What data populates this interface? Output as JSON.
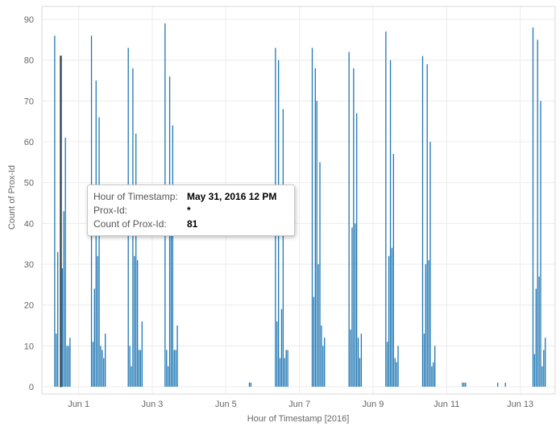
{
  "chart_data": {
    "type": "bar",
    "xlabel": "Hour of Timestamp [2016]",
    "ylabel": "Count of Prox-Id",
    "ylim": [
      0,
      95
    ],
    "x_range_days": [
      0,
      13.95
    ],
    "yticks": [
      0,
      10,
      20,
      30,
      40,
      50,
      60,
      70,
      80,
      90
    ],
    "xticks": [
      {
        "label": "Jun 1",
        "day": 1
      },
      {
        "label": "Jun 3",
        "day": 3
      },
      {
        "label": "Jun 5",
        "day": 5
      },
      {
        "label": "Jun 7",
        "day": 7
      },
      {
        "label": "Jun 9",
        "day": 9
      },
      {
        "label": "Jun 11",
        "day": 11
      },
      {
        "label": "Jun 13",
        "day": 13
      }
    ],
    "grid": true,
    "color": "#1f77b4",
    "series": [
      {
        "values": [
          {
            "t": "May 31, 2016 8 AM",
            "v": 86
          },
          {
            "t": "May 31, 2016 9 AM",
            "v": 13
          },
          {
            "t": "May 31, 2016 10 AM",
            "v": 33
          },
          {
            "t": "May 31, 2016 12 PM",
            "v": 81,
            "highlighted": true
          },
          {
            "t": "May 31, 2016 1 PM",
            "v": 29
          },
          {
            "t": "May 31, 2016 2 PM",
            "v": 43
          },
          {
            "t": "May 31, 2016 3 PM",
            "v": 61
          },
          {
            "t": "May 31, 2016 4 PM",
            "v": 10
          },
          {
            "t": "May 31, 2016 5 PM",
            "v": 10
          },
          {
            "t": "May 31, 2016 6 PM",
            "v": 12
          },
          {
            "t": "Jun 1, 2016 8 AM",
            "v": 86
          },
          {
            "t": "Jun 1, 2016 9 AM",
            "v": 11
          },
          {
            "t": "Jun 1, 2016 10 AM",
            "v": 24
          },
          {
            "t": "Jun 1, 2016 11 AM",
            "v": 75
          },
          {
            "t": "Jun 1, 2016 12 PM",
            "v": 32
          },
          {
            "t": "Jun 1, 2016 1 PM",
            "v": 66
          },
          {
            "t": "Jun 1, 2016 2 PM",
            "v": 10
          },
          {
            "t": "Jun 1, 2016 3 PM",
            "v": 9
          },
          {
            "t": "Jun 1, 2016 4 PM",
            "v": 7
          },
          {
            "t": "Jun 1, 2016 5 PM",
            "v": 13
          },
          {
            "t": "Jun 2, 2016 8 AM",
            "v": 83
          },
          {
            "t": "Jun 2, 2016 9 AM",
            "v": 10
          },
          {
            "t": "Jun 2, 2016 10 AM",
            "v": 5
          },
          {
            "t": "Jun 2, 2016 11 AM",
            "v": 78
          },
          {
            "t": "Jun 2, 2016 12 PM",
            "v": 32
          },
          {
            "t": "Jun 2, 2016 1 PM",
            "v": 62
          },
          {
            "t": "Jun 2, 2016 2 PM",
            "v": 31
          },
          {
            "t": "Jun 2, 2016 3 PM",
            "v": 9
          },
          {
            "t": "Jun 2, 2016 4 PM",
            "v": 9
          },
          {
            "t": "Jun 2, 2016 5 PM",
            "v": 16
          },
          {
            "t": "Jun 3, 2016 8 AM",
            "v": 89
          },
          {
            "t": "Jun 3, 2016 9 AM",
            "v": 9
          },
          {
            "t": "Jun 3, 2016 10 AM",
            "v": 5
          },
          {
            "t": "Jun 3, 2016 11 AM",
            "v": 76
          },
          {
            "t": "Jun 3, 2016 12 PM",
            "v": 37
          },
          {
            "t": "Jun 3, 2016 1 PM",
            "v": 64
          },
          {
            "t": "Jun 3, 2016 2 PM",
            "v": 9
          },
          {
            "t": "Jun 3, 2016 3 PM",
            "v": 9
          },
          {
            "t": "Jun 3, 2016 4 PM",
            "v": 15
          },
          {
            "t": "Jun 5, 2016 3 PM",
            "v": 1
          },
          {
            "t": "Jun 5, 2016 4 PM",
            "v": 1
          },
          {
            "t": "Jun 6, 2016 8 AM",
            "v": 83
          },
          {
            "t": "Jun 6, 2016 9 AM",
            "v": 16
          },
          {
            "t": "Jun 6, 2016 10 AM",
            "v": 80
          },
          {
            "t": "Jun 6, 2016 11 AM",
            "v": 7
          },
          {
            "t": "Jun 6, 2016 12 PM",
            "v": 19
          },
          {
            "t": "Jun 6, 2016 1 PM",
            "v": 68
          },
          {
            "t": "Jun 6, 2016 2 PM",
            "v": 7
          },
          {
            "t": "Jun 6, 2016 3 PM",
            "v": 9
          },
          {
            "t": "Jun 6, 2016 4 PM",
            "v": 9
          },
          {
            "t": "Jun 7, 2016 8 AM",
            "v": 83
          },
          {
            "t": "Jun 7, 2016 9 AM",
            "v": 22
          },
          {
            "t": "Jun 7, 2016 10 AM",
            "v": 78
          },
          {
            "t": "Jun 7, 2016 11 AM",
            "v": 70
          },
          {
            "t": "Jun 7, 2016 12 PM",
            "v": 30
          },
          {
            "t": "Jun 7, 2016 1 PM",
            "v": 55
          },
          {
            "t": "Jun 7, 2016 2 PM",
            "v": 15
          },
          {
            "t": "Jun 7, 2016 3 PM",
            "v": 10
          },
          {
            "t": "Jun 7, 2016 4 PM",
            "v": 12
          },
          {
            "t": "Jun 8, 2016 8 AM",
            "v": 82
          },
          {
            "t": "Jun 8, 2016 9 AM",
            "v": 14
          },
          {
            "t": "Jun 8, 2016 10 AM",
            "v": 39
          },
          {
            "t": "Jun 8, 2016 11 AM",
            "v": 78
          },
          {
            "t": "Jun 8, 2016 12 PM",
            "v": 40
          },
          {
            "t": "Jun 8, 2016 1 PM",
            "v": 67
          },
          {
            "t": "Jun 8, 2016 2 PM",
            "v": 12
          },
          {
            "t": "Jun 8, 2016 3 PM",
            "v": 7
          },
          {
            "t": "Jun 8, 2016 4 PM",
            "v": 13
          },
          {
            "t": "Jun 9, 2016 8 AM",
            "v": 87
          },
          {
            "t": "Jun 9, 2016 9 AM",
            "v": 11
          },
          {
            "t": "Jun 9, 2016 10 AM",
            "v": 32
          },
          {
            "t": "Jun 9, 2016 11 AM",
            "v": 80
          },
          {
            "t": "Jun 9, 2016 12 PM",
            "v": 34
          },
          {
            "t": "Jun 9, 2016 1 PM",
            "v": 57
          },
          {
            "t": "Jun 9, 2016 2 PM",
            "v": 7
          },
          {
            "t": "Jun 9, 2016 3 PM",
            "v": 6
          },
          {
            "t": "Jun 9, 2016 4 PM",
            "v": 10
          },
          {
            "t": "Jun 10, 2016 8 AM",
            "v": 81
          },
          {
            "t": "Jun 10, 2016 9 AM",
            "v": 13
          },
          {
            "t": "Jun 10, 2016 10 AM",
            "v": 30
          },
          {
            "t": "Jun 10, 2016 11 AM",
            "v": 79
          },
          {
            "t": "Jun 10, 2016 12 PM",
            "v": 31
          },
          {
            "t": "Jun 10, 2016 1 PM",
            "v": 60
          },
          {
            "t": "Jun 10, 2016 2 PM",
            "v": 5
          },
          {
            "t": "Jun 10, 2016 3 PM",
            "v": 6
          },
          {
            "t": "Jun 10, 2016 4 PM",
            "v": 10
          },
          {
            "t": "Jun 11, 2016 10 AM",
            "v": 1
          },
          {
            "t": "Jun 11, 2016 11 AM",
            "v": 1
          },
          {
            "t": "Jun 11, 2016 12 PM",
            "v": 1
          },
          {
            "t": "Jun 12, 2016 9 AM",
            "v": 1
          },
          {
            "t": "Jun 12, 2016 2 PM",
            "v": 1
          },
          {
            "t": "Jun 13, 2016 8 AM",
            "v": 88
          },
          {
            "t": "Jun 13, 2016 9 AM",
            "v": 8
          },
          {
            "t": "Jun 13, 2016 10 AM",
            "v": 24
          },
          {
            "t": "Jun 13, 2016 11 AM",
            "v": 85
          },
          {
            "t": "Jun 13, 2016 12 PM",
            "v": 27
          },
          {
            "t": "Jun 13, 2016 1 PM",
            "v": 70
          },
          {
            "t": "Jun 13, 2016 2 PM",
            "v": 5
          },
          {
            "t": "Jun 13, 2016 3 PM",
            "v": 9
          },
          {
            "t": "Jun 13, 2016 4 PM",
            "v": 12
          }
        ]
      }
    ]
  },
  "tooltip": {
    "rows": [
      {
        "label": "Hour of Timestamp:",
        "value": "May 31, 2016 12 PM"
      },
      {
        "label": "Prox-Id:",
        "value": "*"
      },
      {
        "label": "Count of Prox-Id:",
        "value": "81"
      }
    ]
  }
}
